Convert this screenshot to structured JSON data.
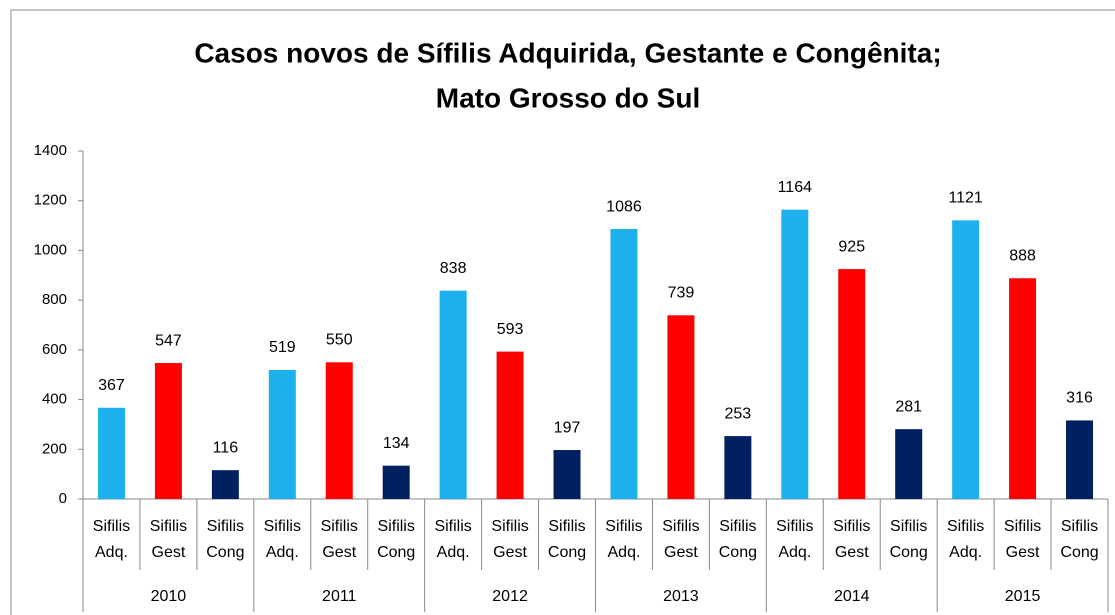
{
  "chart_data": {
    "type": "bar",
    "title": "Casos novos de Sífilis Adquirida, Gestante e Congênita;",
    "subtitle": "Mato Grosso do Sul",
    "categories": [
      "2010",
      "2011",
      "2012",
      "2013",
      "2014",
      "2015"
    ],
    "series": [
      {
        "name": "Sifilis Adq.",
        "color": "#1CB0EC",
        "values": [
          367,
          519,
          838,
          1086,
          1164,
          1121
        ]
      },
      {
        "name": "Sifilis Gest",
        "color": "#FF0000",
        "values": [
          547,
          550,
          593,
          739,
          925,
          888
        ]
      },
      {
        "name": "Sifilis Cong",
        "color": "#002060",
        "values": [
          116,
          134,
          197,
          253,
          281,
          316
        ]
      }
    ],
    "ylim": [
      0,
      1400
    ],
    "yticks": [
      0,
      200,
      400,
      600,
      800,
      1000,
      1200,
      1400
    ],
    "grid": false
  }
}
